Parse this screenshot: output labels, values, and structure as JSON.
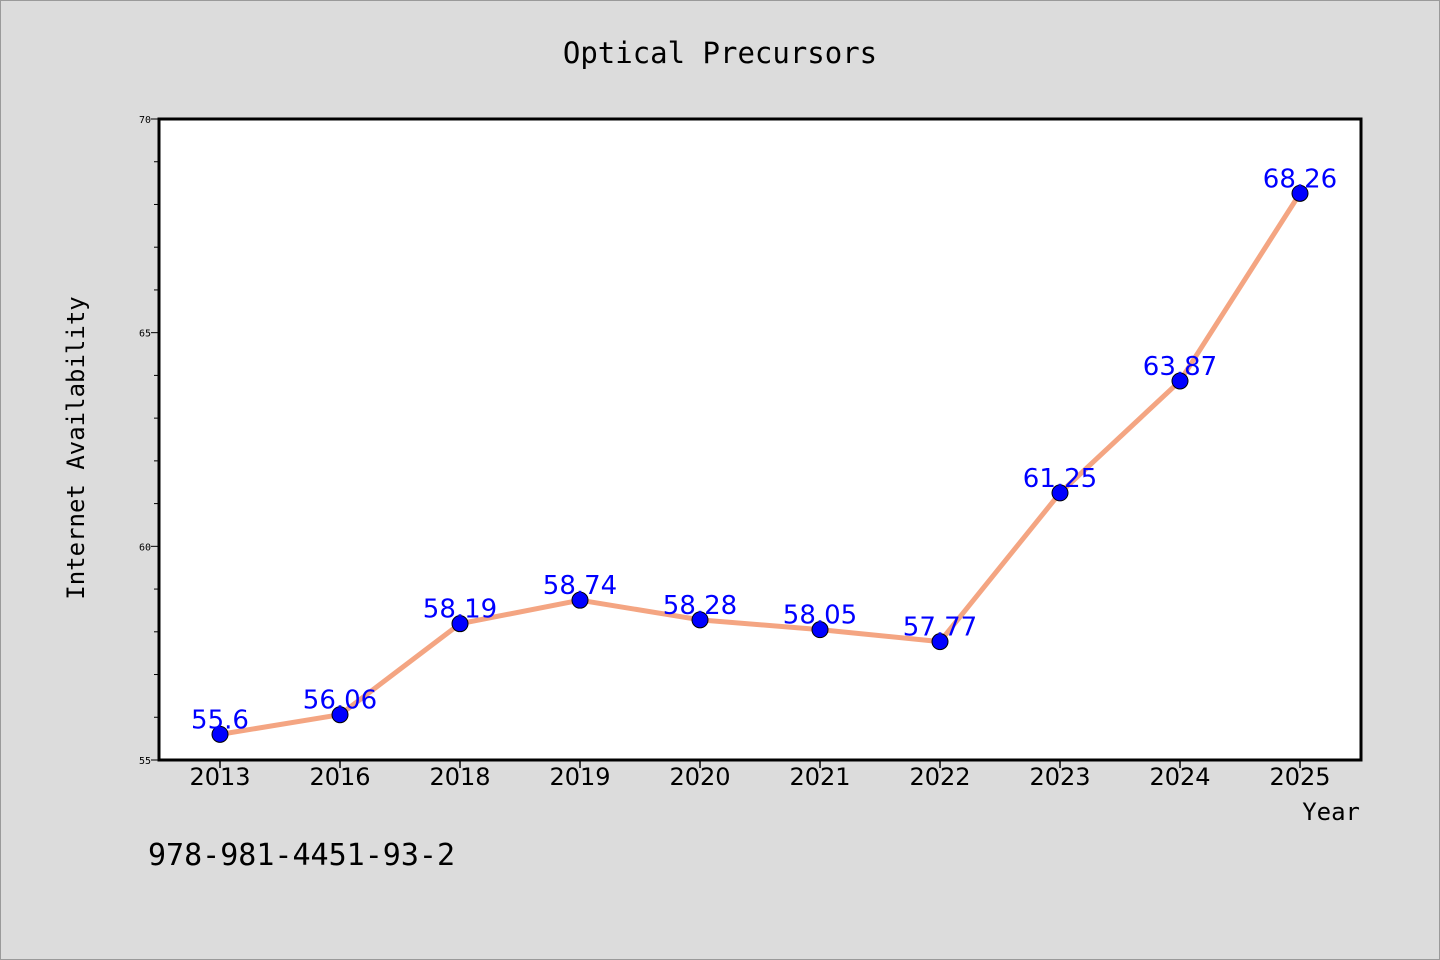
{
  "chart_data": {
    "type": "line",
    "title": "Optical Precursors",
    "xlabel": "Year",
    "ylabel": "Internet Availability",
    "categories": [
      "2013",
      "2016",
      "2018",
      "2019",
      "2020",
      "2021",
      "2022",
      "2023",
      "2024",
      "2025"
    ],
    "series": [
      {
        "values": [
          55.6,
          56.06,
          58.19,
          58.74,
          58.28,
          58.05,
          57.77,
          61.25,
          63.87,
          68.26
        ],
        "data_labels": [
          "55.6",
          "56.06",
          "58.19",
          "58.74",
          "58.28",
          "58.05",
          "57.77",
          "61.25",
          "63.87",
          "68.26"
        ]
      }
    ],
    "ylim": [
      55,
      70
    ],
    "y_ticks": [
      "55",
      "60",
      "65",
      "70"
    ],
    "y_tick_values": [
      55,
      60,
      65,
      70
    ],
    "grid": false,
    "line_color": "#f4a582",
    "marker_color": "#0000ff",
    "label_color": "#0000ff"
  },
  "footer_text": "978-981-4451-93-2"
}
